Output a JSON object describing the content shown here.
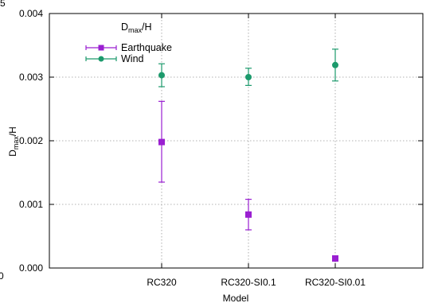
{
  "chart_data": {
    "type": "scatter",
    "title": "",
    "xlabel": "Model",
    "ylabel_main": "D",
    "ylabel_sub": "max",
    "ylabel_tail": "/H",
    "legend_title_main": "D",
    "legend_title_sub": "max",
    "legend_title_tail": "/H",
    "categories": [
      "RC320",
      "RC320-SI0.1",
      "RC320-SI0.01"
    ],
    "ylim": [
      0,
      0.004
    ],
    "yticks": [
      "0.000",
      "0.001",
      "0.002",
      "0.003",
      "0.004"
    ],
    "grid": true,
    "legend_position": "top-left",
    "series": [
      {
        "name": "Earthquake",
        "color": "#9a1fd1",
        "marker": "square",
        "values": [
          0.00198,
          0.00084,
          0.00015
        ],
        "err_low": [
          0.00135,
          0.0006,
          0.00015
        ],
        "err_high": [
          0.00262,
          0.00108,
          0.00015
        ]
      },
      {
        "name": "Wind",
        "color": "#1c9a6c",
        "marker": "circle",
        "values": [
          0.00303,
          0.003,
          0.00319
        ],
        "err_low": [
          0.00285,
          0.00287,
          0.00294
        ],
        "err_high": [
          0.00321,
          0.00314,
          0.00344
        ]
      }
    ]
  },
  "edge_fragments": {
    "top_left": "5",
    "bottom_left": "0"
  }
}
